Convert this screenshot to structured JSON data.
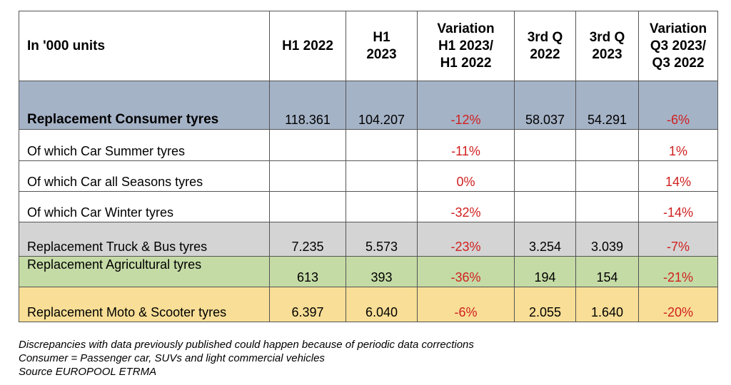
{
  "table": {
    "headers": [
      "In '000 units",
      "H1 2022",
      "H1\n2023",
      "Variation\nH1 2023/\nH1 2022",
      "3rd Q\n2022",
      "3rd Q\n2023",
      "Variation\nQ3 2023/\nQ3 2022"
    ],
    "rows": [
      {
        "label": "Replacement Consumer tyres",
        "h1_2022": "118.361",
        "h1_2023": "104.207",
        "var_h1": "-12%",
        "q3_2022": "58.037",
        "q3_2023": "54.291",
        "var_q3": "-6%"
      },
      {
        "label": "Of which Car Summer tyres",
        "h1_2022": "",
        "h1_2023": "",
        "var_h1": "-11%",
        "q3_2022": "",
        "q3_2023": "",
        "var_q3": "1%"
      },
      {
        "label": "Of which Car all Seasons tyres",
        "h1_2022": "",
        "h1_2023": "",
        "var_h1": "0%",
        "q3_2022": "",
        "q3_2023": "",
        "var_q3": "14%"
      },
      {
        "label": "Of which Car Winter tyres",
        "h1_2022": "",
        "h1_2023": "",
        "var_h1": "-32%",
        "q3_2022": "",
        "q3_2023": "",
        "var_q3": "-14%"
      },
      {
        "label": "Replacement Truck & Bus tyres",
        "h1_2022": "7.235",
        "h1_2023": "5.573",
        "var_h1": "-23%",
        "q3_2022": "3.254",
        "q3_2023": "3.039",
        "var_q3": "-7%"
      },
      {
        "label": "Replacement Agricultural tyres",
        "h1_2022": "613",
        "h1_2023": "393",
        "var_h1": "-36%",
        "q3_2022": "194",
        "q3_2023": "154",
        "var_q3": "-21%"
      },
      {
        "label": "Replacement Moto & Scooter tyres",
        "h1_2022": "6.397",
        "h1_2023": "6.040",
        "var_h1": "-6%",
        "q3_2022": "2.055",
        "q3_2023": "1.640",
        "var_q3": "-20%"
      }
    ],
    "row_colors": [
      "#a5b3c7",
      "#ffffff",
      "#ffffff",
      "#ffffff",
      "#d4d4d4",
      "#c5dba6",
      "#f8de96"
    ],
    "negative_color": "#d01f1f"
  },
  "notes": [
    "Discrepancies with data previously published could happen because of periodic data corrections",
    "Consumer = Passenger car, SUVs and light commercial vehicles",
    "Source EUROPOOL ETRMA"
  ]
}
